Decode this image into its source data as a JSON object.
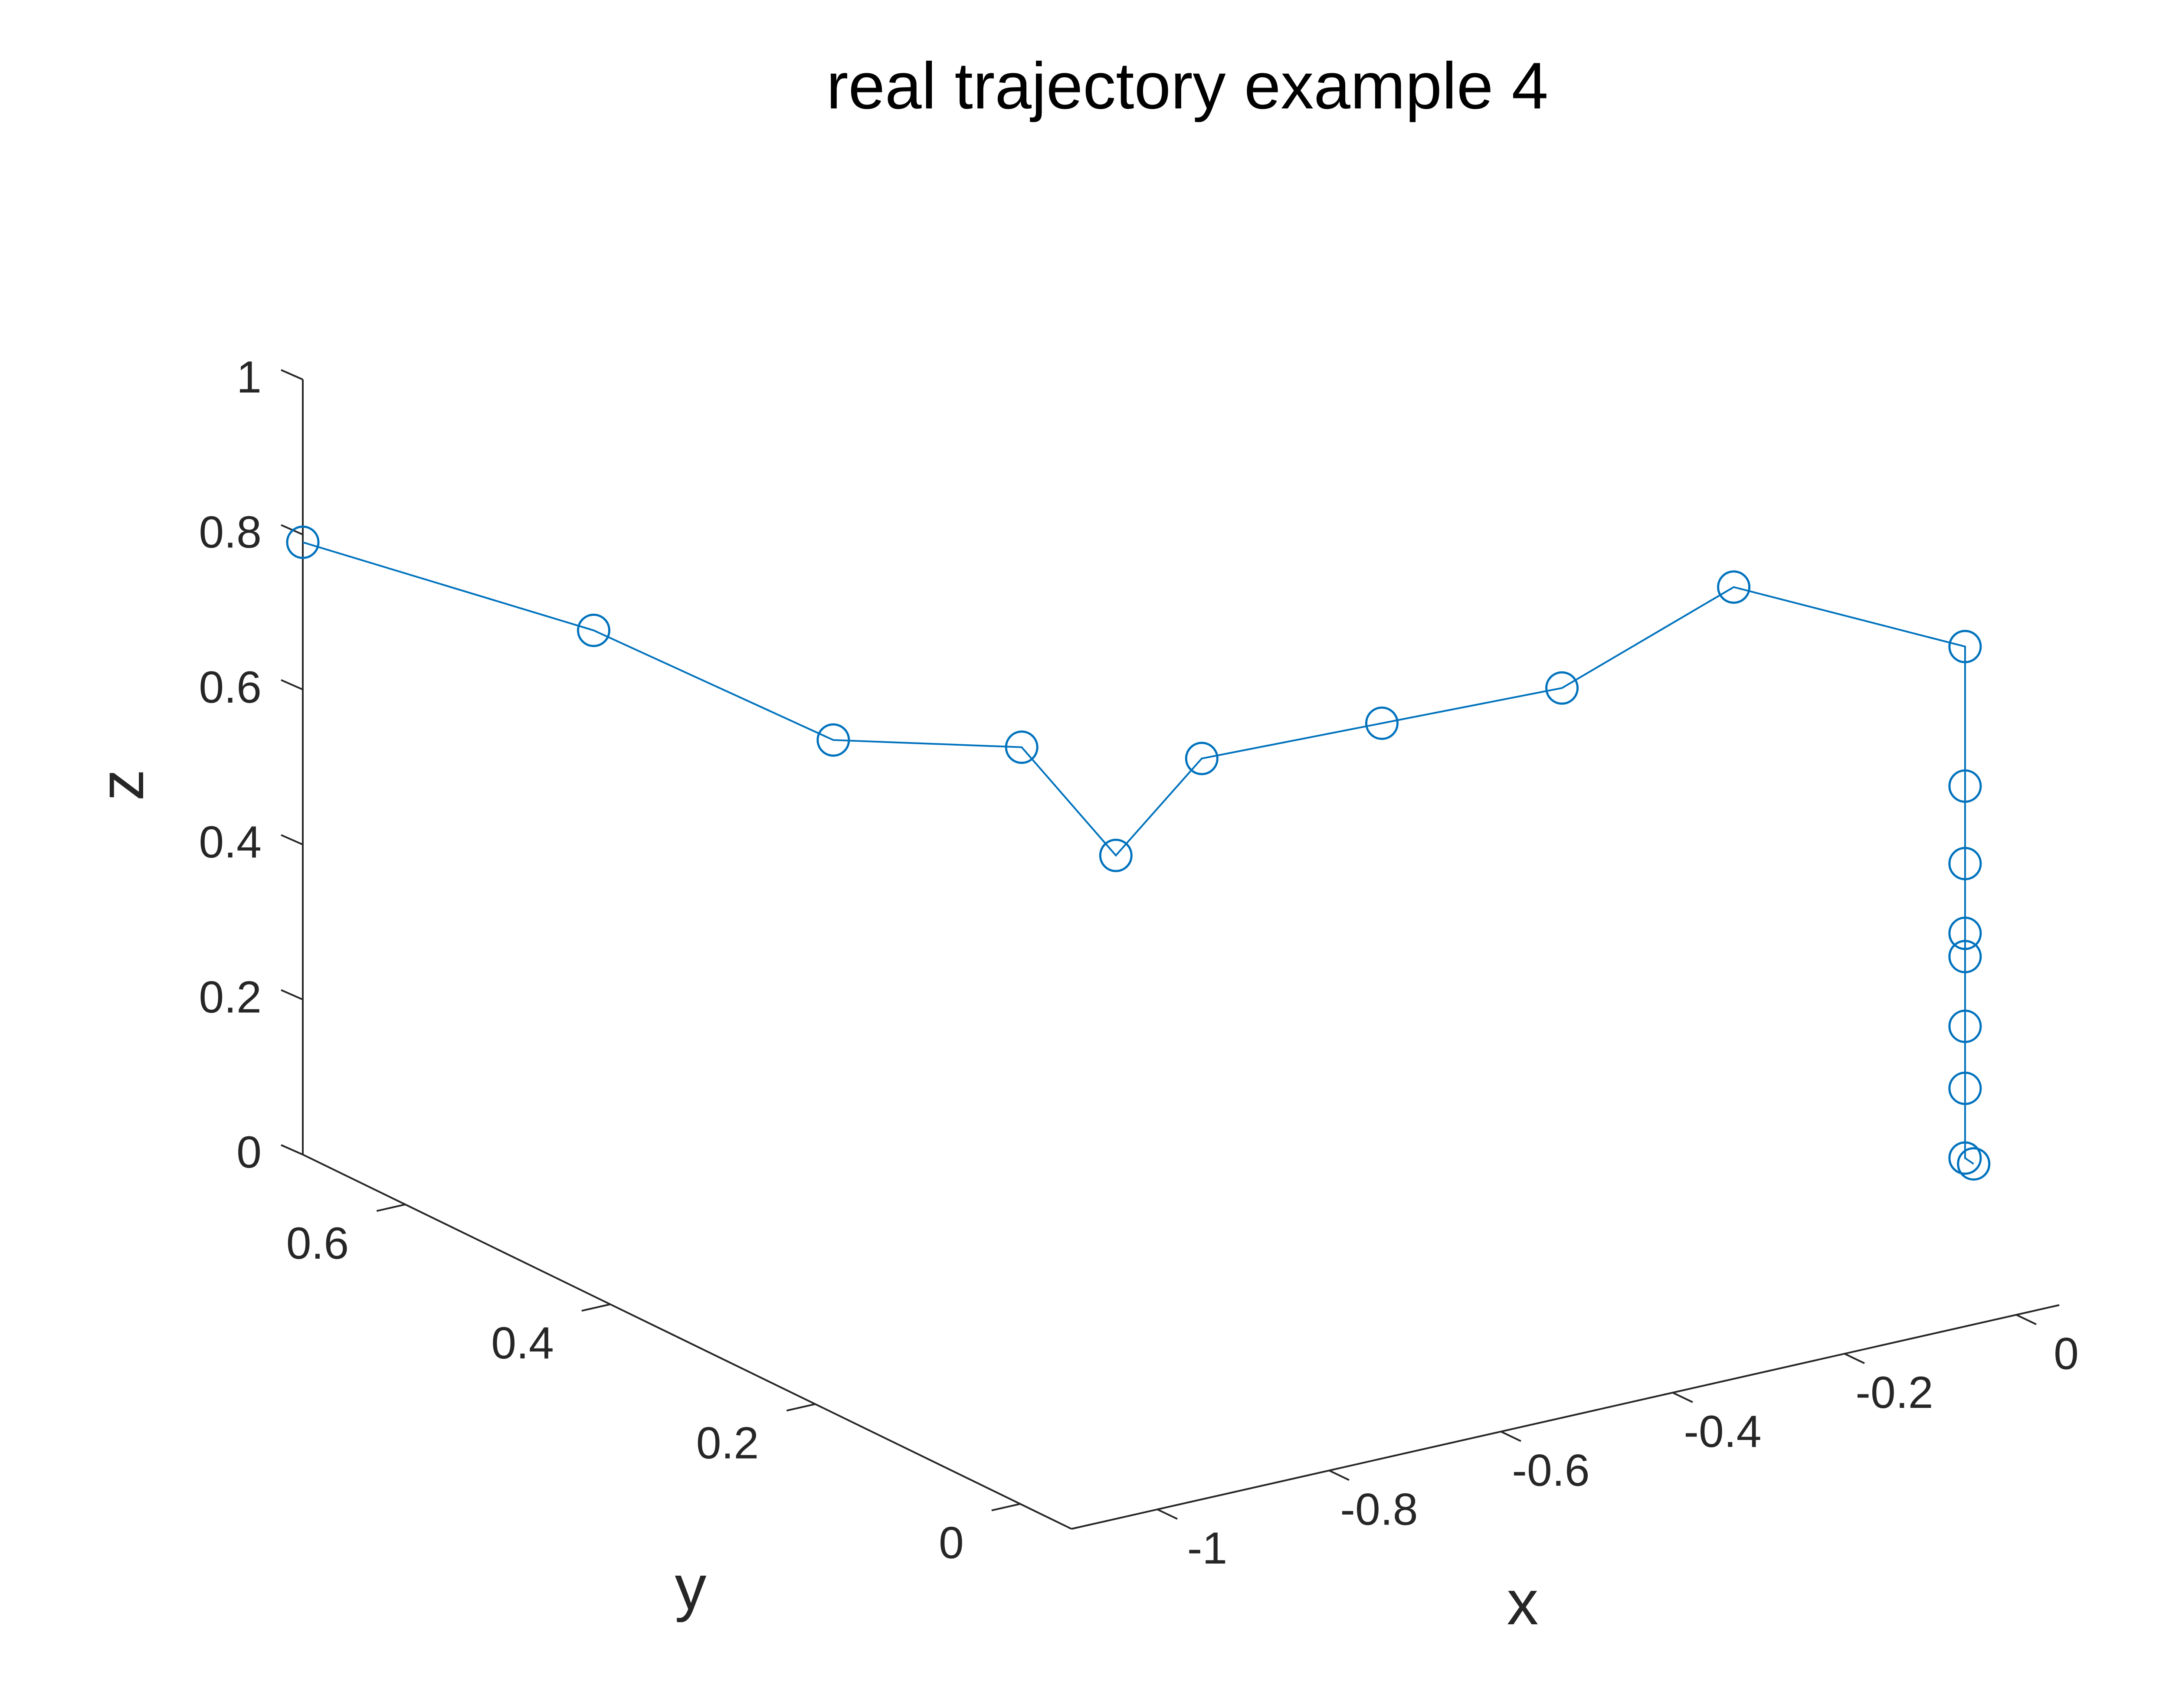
{
  "chart_data": {
    "type": "line3d",
    "title": "real trajectory example 4",
    "xlabel": "x",
    "ylabel": "y",
    "zlabel": "z",
    "grid": false,
    "legend": "none",
    "marker": "circle",
    "color": "#0072BD",
    "xlim": [
      -1.1,
      0.05
    ],
    "ylim": [
      -0.05,
      0.7
    ],
    "zlim": [
      0,
      1
    ],
    "x_ticks": [
      "-1",
      "-0.8",
      "-0.6",
      "-0.4",
      "-0.2",
      "0"
    ],
    "x_tick_values": [
      -1,
      -0.8,
      -0.6,
      -0.4,
      -0.2,
      0
    ],
    "y_ticks": [
      "0",
      "0.2",
      "0.4",
      "0.6"
    ],
    "y_tick_values": [
      0,
      0.2,
      0.4,
      0.6
    ],
    "z_ticks": [
      "0",
      "0.2",
      "0.4",
      "0.6",
      "0.8",
      "1"
    ],
    "z_tick_values": [
      0,
      0.2,
      0.4,
      0.6,
      0.8,
      1
    ],
    "points": [
      {
        "x": -1.1,
        "y": 0.7,
        "z": 0.79
      },
      {
        "x": -1.0,
        "y": 0.5,
        "z": 0.78
      },
      {
        "x": -0.9,
        "y": 0.35,
        "z": 0.71
      },
      {
        "x": -0.8,
        "y": 0.25,
        "z": 0.74
      },
      {
        "x": -0.75,
        "y": 0.2,
        "z": 0.62
      },
      {
        "x": -0.65,
        "y": 0.2,
        "z": 0.72
      },
      {
        "x": -0.5,
        "y": 0.15,
        "z": 0.76
      },
      {
        "x": -0.35,
        "y": 0.1,
        "z": 0.8
      },
      {
        "x": -0.15,
        "y": 0.1,
        "z": 0.88
      },
      {
        "x": 0.0,
        "y": 0.0,
        "z": 0.83
      },
      {
        "x": 0.0,
        "y": 0.0,
        "z": 0.65
      },
      {
        "x": 0.0,
        "y": 0.0,
        "z": 0.55
      },
      {
        "x": 0.0,
        "y": 0.0,
        "z": 0.46
      },
      {
        "x": 0.0,
        "y": 0.0,
        "z": 0.43
      },
      {
        "x": 0.0,
        "y": 0.0,
        "z": 0.34
      },
      {
        "x": 0.0,
        "y": 0.0,
        "z": 0.26
      },
      {
        "x": 0.0,
        "y": 0.0,
        "z": 0.17
      },
      {
        "x": 0.01,
        "y": 0.0,
        "z": 0.16
      }
    ]
  }
}
